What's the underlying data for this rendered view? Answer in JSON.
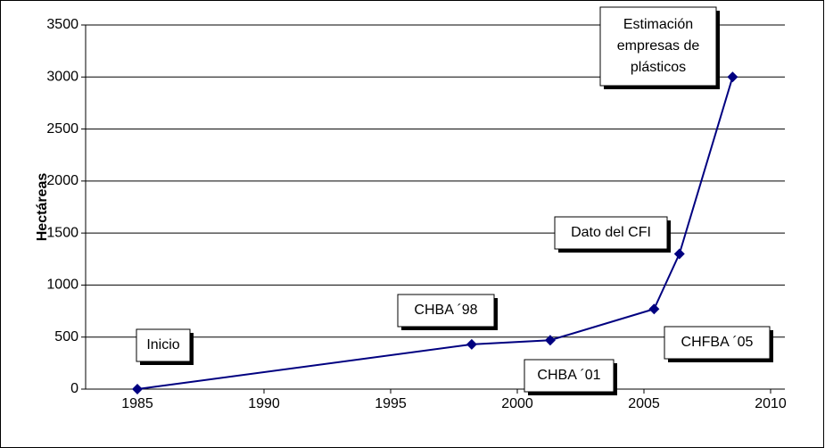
{
  "chart_data": {
    "type": "line",
    "ylabel": "Hectáreas",
    "series": [
      {
        "name": "Hectáreas",
        "color": "#000080",
        "x": [
          1985,
          1998.2,
          2001.3,
          2005.4,
          2006.4,
          2008.5
        ],
        "values": [
          0,
          430,
          470,
          770,
          1300,
          3000
        ]
      }
    ],
    "xlim": [
      1985,
      2010
    ],
    "xticks": [
      1985,
      1990,
      1995,
      2000,
      2005,
      2010
    ],
    "ylim": [
      0,
      3500
    ],
    "yticks": [
      0,
      500,
      1000,
      1500,
      2000,
      2500,
      3000,
      3500
    ],
    "grid": true,
    "annotations": [
      [
        "Inicio"
      ],
      [
        "CHBA ´98"
      ],
      [
        "CHBA ´01"
      ],
      [
        "CHFBA ´05"
      ],
      [
        "Dato del CFI"
      ],
      [
        "Estimación",
        "empresas de",
        "plásticos"
      ]
    ]
  }
}
